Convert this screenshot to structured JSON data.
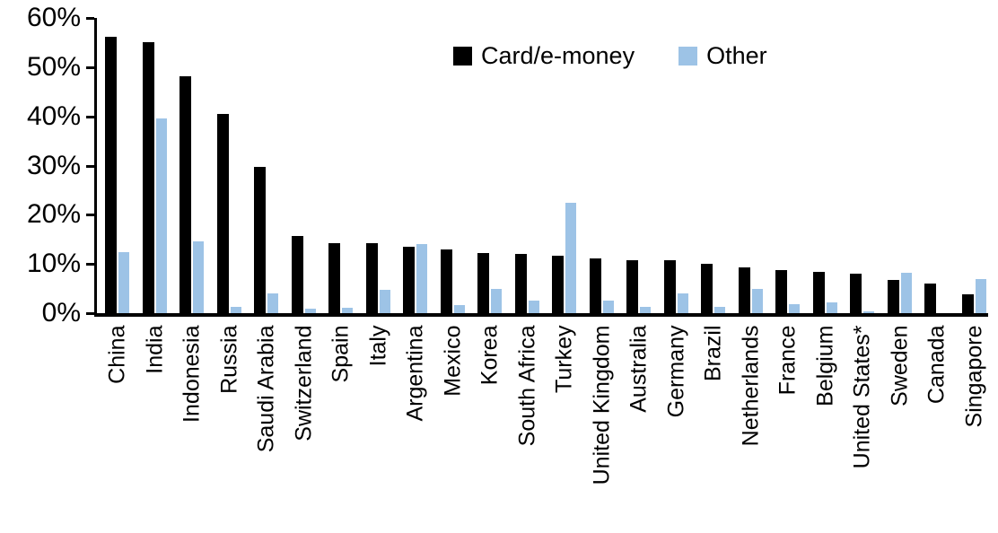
{
  "chart_data": {
    "type": "bar",
    "title": "",
    "xlabel": "",
    "ylabel": "",
    "ylim": [
      0,
      60
    ],
    "yticks": [
      "0%",
      "10%",
      "20%",
      "30%",
      "40%",
      "50%",
      "60%"
    ],
    "ytick_values": [
      0,
      10,
      20,
      30,
      40,
      50,
      60
    ],
    "grid": false,
    "legend_position": "top-center",
    "categories": [
      "China",
      "India",
      "Indonesia",
      "Russia",
      "Saudi Arabia",
      "Switzerland",
      "Spain",
      "Italy",
      "Argentina",
      "Mexico",
      "Korea",
      "South Africa",
      "Turkey",
      "United Kingdom",
      "Australia",
      "Germany",
      "Brazil",
      "Netherlands",
      "France",
      "Belgium",
      "United States*",
      "Sweden",
      "Canada",
      "Singapore"
    ],
    "series": [
      {
        "name": "Card/e-money",
        "color": "#000000",
        "values": [
          56.2,
          55.0,
          48.2,
          40.5,
          29.7,
          15.6,
          14.2,
          14.2,
          13.5,
          13.0,
          12.3,
          12.0,
          11.7,
          11.1,
          10.8,
          10.7,
          10.1,
          9.3,
          8.7,
          8.3,
          8.0,
          6.7,
          6.1,
          3.9
        ]
      },
      {
        "name": "Other",
        "color": "#9DC3E6",
        "values": [
          12.4,
          39.6,
          14.5,
          1.3,
          4.0,
          0.9,
          1.1,
          4.7,
          14.1,
          1.7,
          4.9,
          2.5,
          22.5,
          2.5,
          1.2,
          4.1,
          1.3,
          5.0,
          1.8,
          2.2,
          0.4,
          8.2,
          0.0,
          6.9
        ]
      }
    ]
  }
}
